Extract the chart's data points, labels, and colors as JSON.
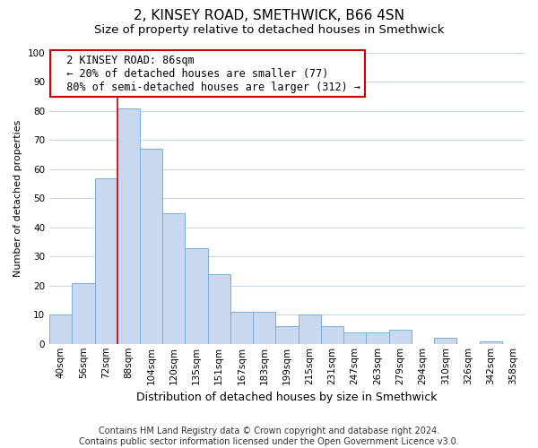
{
  "title": "2, KINSEY ROAD, SMETHWICK, B66 4SN",
  "subtitle": "Size of property relative to detached houses in Smethwick",
  "xlabel": "Distribution of detached houses by size in Smethwick",
  "ylabel": "Number of detached properties",
  "footer_line1": "Contains HM Land Registry data © Crown copyright and database right 2024.",
  "footer_line2": "Contains public sector information licensed under the Open Government Licence v3.0.",
  "bin_labels": [
    "40sqm",
    "56sqm",
    "72sqm",
    "88sqm",
    "104sqm",
    "120sqm",
    "135sqm",
    "151sqm",
    "167sqm",
    "183sqm",
    "199sqm",
    "215sqm",
    "231sqm",
    "247sqm",
    "263sqm",
    "279sqm",
    "294sqm",
    "310sqm",
    "326sqm",
    "342sqm",
    "358sqm"
  ],
  "bar_values": [
    10,
    21,
    57,
    81,
    67,
    45,
    33,
    24,
    11,
    11,
    6,
    10,
    6,
    4,
    4,
    5,
    0,
    2,
    0,
    1,
    0
  ],
  "bar_color": "#c8d8ee",
  "bar_edge_color": "#7aadd4",
  "annotation_title": "2 KINSEY ROAD: 86sqm",
  "annotation_line1": "← 20% of detached houses are smaller (77)",
  "annotation_line2": "80% of semi-detached houses are larger (312) →",
  "annotation_box_color": "#ffffff",
  "annotation_box_edge": "#cc0000",
  "property_line_color": "#cc0000",
  "ylim": [
    0,
    100
  ],
  "yticks": [
    0,
    10,
    20,
    30,
    40,
    50,
    60,
    70,
    80,
    90,
    100
  ],
  "title_fontsize": 11,
  "subtitle_fontsize": 9.5,
  "xlabel_fontsize": 9,
  "ylabel_fontsize": 8,
  "tick_fontsize": 7.5,
  "footer_fontsize": 7,
  "annotation_fontsize": 8.5,
  "grid_color": "#c8d4e8",
  "background_color": "#ffffff",
  "property_line_index": 3
}
